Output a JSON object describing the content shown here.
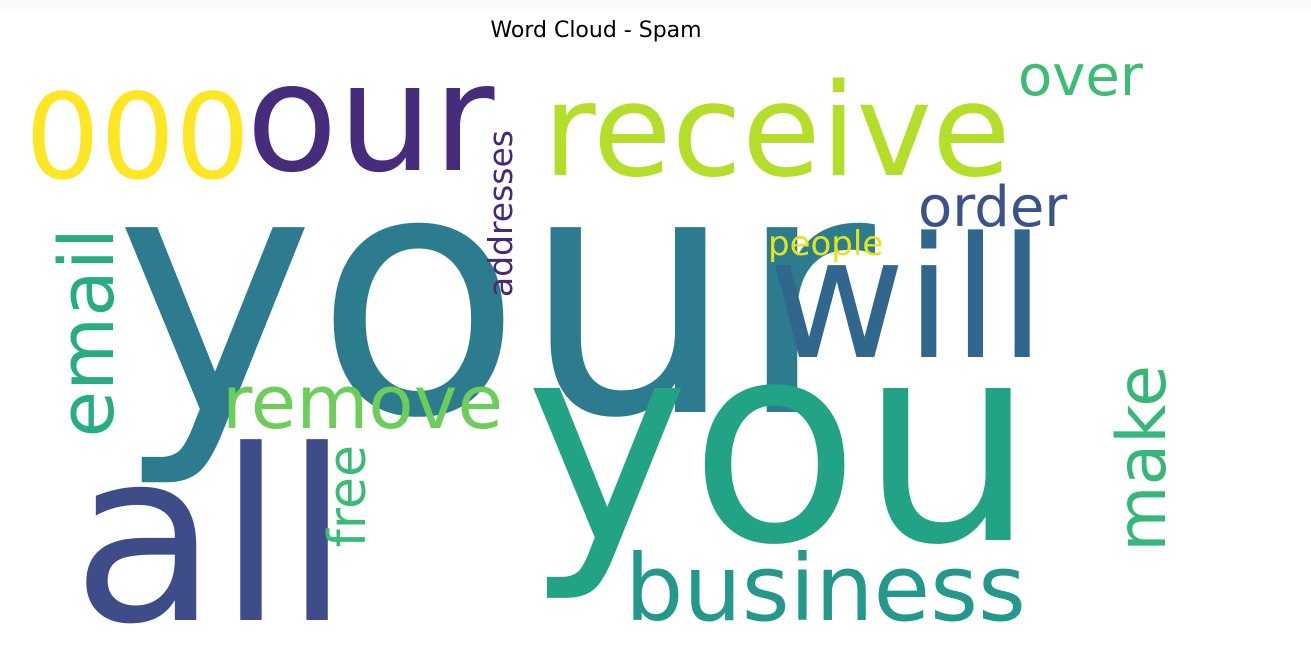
{
  "title": "Word Cloud - Spam",
  "chart_data": {
    "type": "wordcloud",
    "title": "Word Cloud - Spam",
    "background": "#ffffff",
    "colormap": "viridis",
    "words": [
      {
        "text": "your",
        "rank": 1,
        "color": "#2c7b8e",
        "orientation": "horizontal"
      },
      {
        "text": "you",
        "rank": 2,
        "color": "#22a386",
        "orientation": "horizontal"
      },
      {
        "text": "all",
        "rank": 3,
        "color": "#3e4d89",
        "orientation": "horizontal"
      },
      {
        "text": "will",
        "rank": 4,
        "color": "#32678d",
        "orientation": "horizontal"
      },
      {
        "text": "our",
        "rank": 5,
        "color": "#462c7b",
        "orientation": "horizontal"
      },
      {
        "text": "receive",
        "rank": 6,
        "color": "#b5de2b",
        "orientation": "horizontal"
      },
      {
        "text": "000",
        "rank": 7,
        "color": "#fde725",
        "orientation": "horizontal"
      },
      {
        "text": "business",
        "rank": 8,
        "color": "#23988b",
        "orientation": "horizontal"
      },
      {
        "text": "email",
        "rank": 9,
        "color": "#27ad81",
        "orientation": "vertical"
      },
      {
        "text": "remove",
        "rank": 10,
        "color": "#6ccd5a",
        "orientation": "horizontal"
      },
      {
        "text": "make",
        "rank": 11,
        "color": "#35b779",
        "orientation": "vertical"
      },
      {
        "text": "over",
        "rank": 12,
        "color": "#3dbc74",
        "orientation": "horizontal"
      },
      {
        "text": "order",
        "rank": 13,
        "color": "#3b528b",
        "orientation": "horizontal"
      },
      {
        "text": "free",
        "rank": 14,
        "color": "#3bbb75",
        "orientation": "vertical"
      },
      {
        "text": "addresses",
        "rank": 15,
        "color": "#482878",
        "orientation": "vertical"
      },
      {
        "text": "people",
        "rank": 16,
        "color": "#e5e419",
        "orientation": "horizontal"
      }
    ]
  }
}
